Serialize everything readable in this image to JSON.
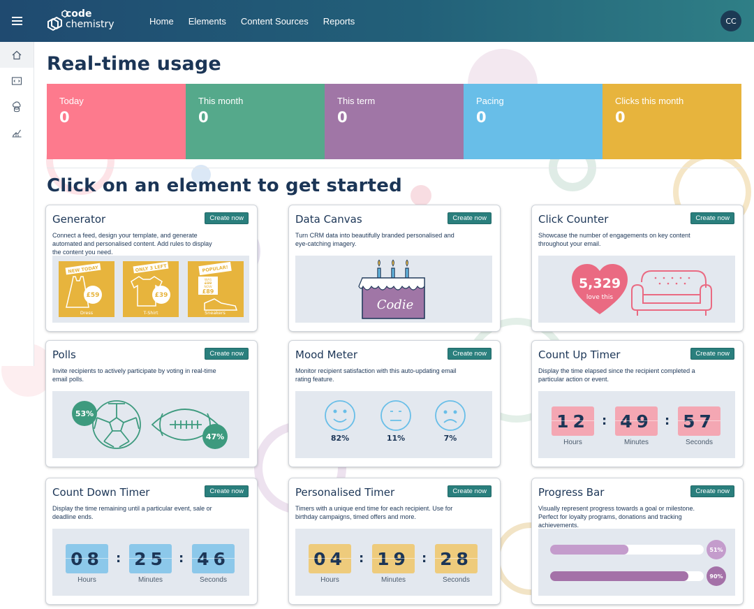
{
  "app": {
    "logo_line1": "code",
    "logo_line2": "chemistry",
    "user_initials": "CC"
  },
  "nav": {
    "items": [
      "Home",
      "Elements",
      "Content Sources",
      "Reports"
    ]
  },
  "page": {
    "title": "Real-time usage",
    "subtitle": "Click on an element to get started"
  },
  "stats": [
    {
      "label": "Today",
      "value": "0",
      "color": "#fd7a8d"
    },
    {
      "label": "This month",
      "value": "0",
      "color": "#55a98b"
    },
    {
      "label": "This term",
      "value": "0",
      "color": "#a076a6"
    },
    {
      "label": "Pacing",
      "value": "0",
      "color": "#68bee8"
    },
    {
      "label": "Clicks this month",
      "value": "0",
      "color": "#e7b43d"
    }
  ],
  "cards": {
    "generator": {
      "title": "Generator",
      "button": "Create now",
      "desc": "Connect a feed, design your template, and generate automated and personalised content. Add rules to display the content you need.",
      "products": [
        {
          "tag": "NEW TODAY",
          "price": "£59",
          "name": "Dress"
        },
        {
          "tag": "ONLY 3 LEFT",
          "price": "£39",
          "name": "T-Shirt"
        },
        {
          "tag": "POPULAR!",
          "price": "£89",
          "name": "Sneakers",
          "was_label": "WAS",
          "was_price": "£99",
          "now_label": "NOW"
        }
      ]
    },
    "data_canvas": {
      "title": "Data Canvas",
      "button": "Create now",
      "desc": "Turn CRM data into beautifully branded personalised and eye-catching imagery.",
      "cake_text": "Codie"
    },
    "click_counter": {
      "title": "Click Counter",
      "button": "Create now",
      "desc": "Showcase the number of engagements on key content throughout your email.",
      "count": "5,329",
      "caption": "love this"
    },
    "polls": {
      "title": "Polls",
      "button": "Create now",
      "desc": "Invite recipients to actively participate by voting in real-time email polls.",
      "option_a_pct": "53%",
      "option_b_pct": "47%"
    },
    "mood_meter": {
      "title": "Mood Meter",
      "button": "Create now",
      "desc": "Monitor recipient satisfaction with this auto-updating email rating feature.",
      "happy": "82%",
      "neutral": "11%",
      "sad": "7%"
    },
    "count_up": {
      "title": "Count Up Timer",
      "button": "Create now",
      "desc": "Display the time elapsed since the recipient completed a particular action or event.",
      "hours": "12",
      "minutes": "49",
      "seconds": "57",
      "hours_label": "Hours",
      "minutes_label": "Minutes",
      "seconds_label": "Seconds",
      "color": "#f4a7b3"
    },
    "count_down": {
      "title": "Count Down Timer",
      "button": "Create now",
      "desc": "Display the time remaining until a particular event, sale or deadline ends.",
      "hours": "08",
      "minutes": "25",
      "seconds": "46",
      "hours_label": "Hours",
      "minutes_label": "Minutes",
      "seconds_label": "Seconds",
      "color": "#8cc8ea"
    },
    "personalised": {
      "title": "Personalised Timer",
      "button": "Create now",
      "desc": "Timers with a unique end time for each recipient. Use for birthday campaigns, timed offers and more.",
      "hours": "04",
      "minutes": "19",
      "seconds": "28",
      "hours_label": "Hours",
      "minutes_label": "Minutes",
      "seconds_label": "Seconds",
      "color": "#eecb7c"
    },
    "progress": {
      "title": "Progress Bar",
      "button": "Create now",
      "desc": "Visually represent progress towards a goal or milestone. Perfect for loyalty programs, donations and tracking achievements.",
      "bars": [
        {
          "pct_label": "51%",
          "fraction": 0.51,
          "color": "#c49ccc"
        },
        {
          "pct_label": "90%",
          "fraction": 0.9,
          "color": "#a471a8"
        }
      ]
    }
  }
}
